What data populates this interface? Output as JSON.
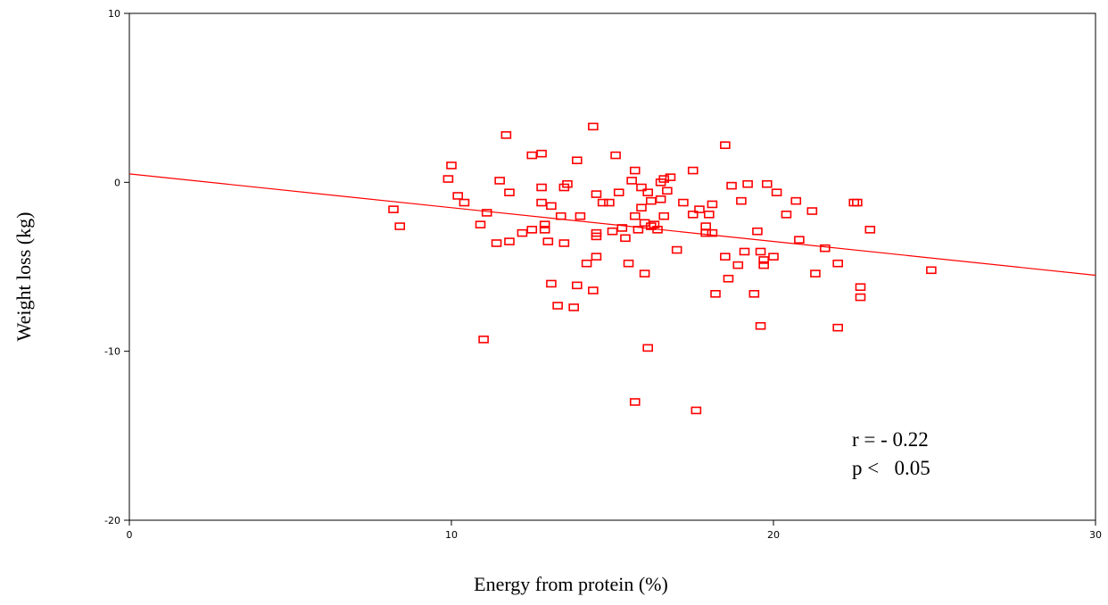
{
  "chart_data": {
    "type": "scatter",
    "xlabel": "Energy from protein (%)",
    "ylabel": "Weight loss (kg)",
    "xlim": [
      0,
      30
    ],
    "ylim": [
      -20,
      10
    ],
    "xticks": [
      "0",
      "10",
      "20",
      "30"
    ],
    "yticks": [
      "10",
      "0",
      "-10",
      "-20"
    ],
    "grid": false,
    "marker": "open-square",
    "color": "#ff0000",
    "fit_line": {
      "x": [
        0,
        30
      ],
      "y": [
        0.5,
        -5.5
      ]
    },
    "annotations": [
      "r = - 0.22",
      "p <   0.05"
    ],
    "points": [
      [
        8.2,
        -1.6
      ],
      [
        8.4,
        -2.6
      ],
      [
        9.9,
        0.2
      ],
      [
        10.0,
        1.0
      ],
      [
        10.2,
        -0.8
      ],
      [
        10.4,
        -1.2
      ],
      [
        10.9,
        -2.5
      ],
      [
        11.0,
        -9.3
      ],
      [
        11.1,
        -1.8
      ],
      [
        11.4,
        -3.6
      ],
      [
        11.5,
        0.1
      ],
      [
        11.7,
        2.8
      ],
      [
        11.8,
        -0.6
      ],
      [
        11.8,
        -3.5
      ],
      [
        12.2,
        -3.0
      ],
      [
        12.5,
        -2.8
      ],
      [
        12.5,
        1.6
      ],
      [
        12.8,
        -0.3
      ],
      [
        12.8,
        -1.2
      ],
      [
        12.8,
        1.7
      ],
      [
        12.9,
        -2.8
      ],
      [
        12.9,
        -2.5
      ],
      [
        13.0,
        -3.5
      ],
      [
        13.1,
        -1.4
      ],
      [
        13.1,
        -6.0
      ],
      [
        13.3,
        -7.3
      ],
      [
        13.4,
        -2.0
      ],
      [
        13.5,
        -0.3
      ],
      [
        13.5,
        -3.6
      ],
      [
        13.6,
        -0.1
      ],
      [
        13.9,
        -6.1
      ],
      [
        13.9,
        1.3
      ],
      [
        14.0,
        -2.0
      ],
      [
        14.2,
        -4.8
      ],
      [
        14.4,
        3.3
      ],
      [
        14.4,
        -6.4
      ],
      [
        14.5,
        -0.7
      ],
      [
        14.5,
        -4.4
      ],
      [
        14.5,
        -3.2
      ],
      [
        14.5,
        -3.0
      ],
      [
        13.8,
        -7.4
      ],
      [
        14.7,
        -1.2
      ],
      [
        14.9,
        -1.2
      ],
      [
        15.0,
        -2.9
      ],
      [
        15.1,
        1.6
      ],
      [
        15.2,
        -0.6
      ],
      [
        15.3,
        -2.7
      ],
      [
        15.4,
        -3.3
      ],
      [
        15.5,
        -4.8
      ],
      [
        15.6,
        0.1
      ],
      [
        15.7,
        0.7
      ],
      [
        15.7,
        -2.0
      ],
      [
        15.7,
        -13.0
      ],
      [
        15.8,
        -2.8
      ],
      [
        15.9,
        -1.5
      ],
      [
        15.9,
        -0.3
      ],
      [
        16.0,
        -5.4
      ],
      [
        16.0,
        -2.4
      ],
      [
        16.1,
        -0.6
      ],
      [
        16.1,
        -9.8
      ],
      [
        16.2,
        -2.6
      ],
      [
        16.2,
        -1.1
      ],
      [
        16.3,
        -2.5
      ],
      [
        16.4,
        -2.8
      ],
      [
        16.5,
        0.0
      ],
      [
        16.5,
        -1.0
      ],
      [
        16.6,
        0.2
      ],
      [
        16.6,
        -2.0
      ],
      [
        16.7,
        -0.5
      ],
      [
        16.8,
        0.3
      ],
      [
        17.0,
        -4.0
      ],
      [
        17.2,
        -1.2
      ],
      [
        17.5,
        -1.9
      ],
      [
        17.5,
        0.7
      ],
      [
        17.6,
        -13.5
      ],
      [
        17.7,
        -1.6
      ],
      [
        17.9,
        -3.0
      ],
      [
        17.9,
        -2.6
      ],
      [
        18.0,
        -1.9
      ],
      [
        18.1,
        -1.3
      ],
      [
        18.1,
        -3.0
      ],
      [
        18.2,
        -6.6
      ],
      [
        18.5,
        2.2
      ],
      [
        18.5,
        -4.4
      ],
      [
        18.6,
        -5.7
      ],
      [
        18.7,
        -0.2
      ],
      [
        18.9,
        -4.9
      ],
      [
        19.0,
        -1.1
      ],
      [
        19.1,
        -4.1
      ],
      [
        19.2,
        -0.1
      ],
      [
        19.4,
        -6.6
      ],
      [
        19.5,
        -2.9
      ],
      [
        19.6,
        -8.5
      ],
      [
        19.6,
        -4.1
      ],
      [
        19.7,
        -4.6
      ],
      [
        19.7,
        -4.9
      ],
      [
        19.8,
        -0.1
      ],
      [
        20.0,
        -4.4
      ],
      [
        20.1,
        -0.6
      ],
      [
        20.4,
        -1.9
      ],
      [
        20.7,
        -1.1
      ],
      [
        20.8,
        -3.4
      ],
      [
        21.2,
        -1.7
      ],
      [
        21.3,
        -5.4
      ],
      [
        21.6,
        -3.9
      ],
      [
        22.0,
        -4.8
      ],
      [
        22.0,
        -8.6
      ],
      [
        22.6,
        -1.2
      ],
      [
        22.7,
        -6.2
      ],
      [
        22.7,
        -6.8
      ],
      [
        22.5,
        -1.2
      ],
      [
        23.0,
        -2.8
      ],
      [
        24.9,
        -5.2
      ]
    ]
  }
}
